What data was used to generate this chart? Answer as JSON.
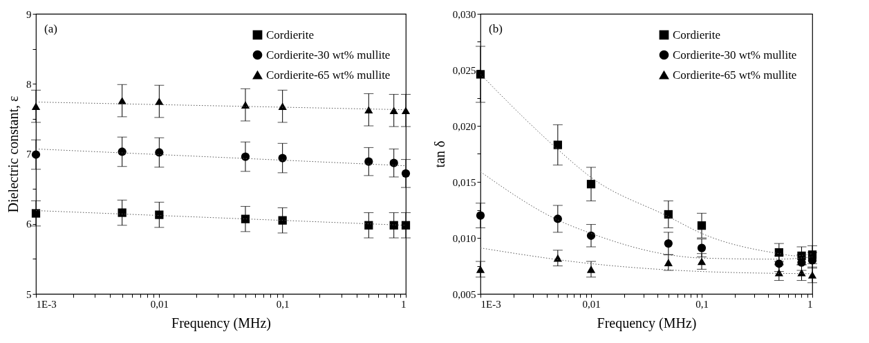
{
  "chart_data": [
    {
      "type": "scatter",
      "xlabel": "Frequency (MHz)",
      "ylabel": "Dielectric constant,  ε",
      "annotations": [
        "(a)"
      ],
      "log": "x",
      "grid": false,
      "legend": "top right",
      "x": [
        0.001,
        0.005,
        0.01,
        0.05,
        0.1,
        0.5,
        0.8,
        1
      ],
      "xlim": [
        0.001,
        1
      ],
      "xticks": [
        {
          "value": 0.001,
          "label": "1E-3"
        },
        {
          "value": 0.002,
          "label": null
        },
        {
          "value": 0.003,
          "label": null
        },
        {
          "value": 0.004,
          "label": null
        },
        {
          "value": 0.005,
          "label": null
        },
        {
          "value": 0.006,
          "label": null
        },
        {
          "value": 0.007,
          "label": null
        },
        {
          "value": 0.008,
          "label": null
        },
        {
          "value": 0.009,
          "label": null
        },
        {
          "value": 0.01,
          "label": "0,01"
        },
        {
          "value": 0.02,
          "label": null
        },
        {
          "value": 0.03,
          "label": null
        },
        {
          "value": 0.04,
          "label": null
        },
        {
          "value": 0.05,
          "label": null
        },
        {
          "value": 0.06,
          "label": null
        },
        {
          "value": 0.07,
          "label": null
        },
        {
          "value": 0.08,
          "label": null
        },
        {
          "value": 0.09,
          "label": null
        },
        {
          "value": 0.1,
          "label": "0,1"
        },
        {
          "value": 0.2,
          "label": null
        },
        {
          "value": 0.3,
          "label": null
        },
        {
          "value": 0.4,
          "label": null
        },
        {
          "value": 0.5,
          "label": null
        },
        {
          "value": 0.6,
          "label": null
        },
        {
          "value": 0.7,
          "label": null
        },
        {
          "value": 0.8,
          "label": null
        },
        {
          "value": 0.9,
          "label": null
        },
        {
          "value": 1,
          "label": "1"
        }
      ],
      "ylim": [
        5,
        9
      ],
      "yticks": [
        5,
        {
          "value": 5.5,
          "label": null
        },
        6,
        {
          "value": 6.5,
          "label": null
        },
        7,
        {
          "value": 7.5,
          "label": null
        },
        8,
        {
          "value": 8.5,
          "label": null
        },
        9
      ],
      "series": [
        {
          "name": "Cordierite",
          "type": "scatter",
          "marker": "square",
          "color": "#000000",
          "values": [
            6.15,
            6.16,
            6.13,
            6.07,
            6.05,
            5.98,
            5.98,
            5.98
          ],
          "errors": [
            0.18,
            0.18,
            0.18,
            0.18,
            0.18,
            0.18,
            0.18,
            0.18
          ]
        },
        {
          "name": "Cordierite-30 wt% mullite",
          "type": "scatter",
          "marker": "circle",
          "color": "#000000",
          "values": [
            6.99,
            7.03,
            7.02,
            6.96,
            6.94,
            6.89,
            6.87,
            6.72
          ],
          "errors": [
            0.21,
            0.21,
            0.21,
            0.21,
            0.21,
            0.2,
            0.2,
            0.2
          ]
        },
        {
          "name": "Cordierite-65 wt% mullite",
          "type": "scatter",
          "marker": "triangle",
          "color": "#000000",
          "values": [
            7.68,
            7.76,
            7.75,
            7.7,
            7.68,
            7.63,
            7.62,
            7.62
          ],
          "errors": [
            0.23,
            0.23,
            0.23,
            0.23,
            0.23,
            0.23,
            0.23,
            0.23
          ]
        },
        {
          "type": "line",
          "marker": "none",
          "line_style": "dotted",
          "color": "#555555",
          "x": [
            0.001,
            1
          ],
          "values": [
            6.19,
            5.98
          ]
        },
        {
          "type": "line",
          "marker": "none",
          "line_style": "dotted",
          "color": "#555555",
          "x": [
            0.001,
            1
          ],
          "values": [
            7.07,
            6.83
          ]
        },
        {
          "type": "line",
          "marker": "none",
          "line_style": "dotted",
          "color": "#555555",
          "x": [
            0.001,
            1
          ],
          "values": [
            7.74,
            7.63
          ]
        }
      ]
    },
    {
      "type": "scatter",
      "xlabel": "Frequency (MHz)",
      "ylabel": "tan δ",
      "annotations": [
        "(b)"
      ],
      "log": "x",
      "grid": false,
      "legend": "top right",
      "x": [
        0.001,
        0.005,
        0.01,
        0.05,
        0.1,
        0.5,
        0.8,
        1
      ],
      "xlim": [
        0.001,
        1
      ],
      "xticks": [
        {
          "value": 0.001,
          "label": "1E-3"
        },
        {
          "value": 0.002,
          "label": null
        },
        {
          "value": 0.003,
          "label": null
        },
        {
          "value": 0.004,
          "label": null
        },
        {
          "value": 0.005,
          "label": null
        },
        {
          "value": 0.006,
          "label": null
        },
        {
          "value": 0.007,
          "label": null
        },
        {
          "value": 0.008,
          "label": null
        },
        {
          "value": 0.009,
          "label": null
        },
        {
          "value": 0.01,
          "label": "0,01"
        },
        {
          "value": 0.02,
          "label": null
        },
        {
          "value": 0.03,
          "label": null
        },
        {
          "value": 0.04,
          "label": null
        },
        {
          "value": 0.05,
          "label": null
        },
        {
          "value": 0.06,
          "label": null
        },
        {
          "value": 0.07,
          "label": null
        },
        {
          "value": 0.08,
          "label": null
        },
        {
          "value": 0.09,
          "label": null
        },
        {
          "value": 0.1,
          "label": "0,1"
        },
        {
          "value": 0.2,
          "label": null
        },
        {
          "value": 0.3,
          "label": null
        },
        {
          "value": 0.4,
          "label": null
        },
        {
          "value": 0.5,
          "label": null
        },
        {
          "value": 0.6,
          "label": null
        },
        {
          "value": 0.7,
          "label": null
        },
        {
          "value": 0.8,
          "label": null
        },
        {
          "value": 0.9,
          "label": null
        },
        {
          "value": 1,
          "label": "1"
        }
      ],
      "ylim": [
        0.005,
        0.03
      ],
      "yticks": [
        {
          "value": 0.005,
          "label": "0,005"
        },
        {
          "value": 0.0075,
          "label": null
        },
        {
          "value": 0.01,
          "label": "0,010"
        },
        {
          "value": 0.0125,
          "label": null
        },
        {
          "value": 0.015,
          "label": "0,015"
        },
        {
          "value": 0.0175,
          "label": null
        },
        {
          "value": 0.02,
          "label": "0,020"
        },
        {
          "value": 0.0225,
          "label": null
        },
        {
          "value": 0.025,
          "label": "0,025"
        },
        {
          "value": 0.0275,
          "label": null
        },
        {
          "value": 0.03,
          "label": "0,030"
        }
      ],
      "series": [
        {
          "name": "Cordierite",
          "type": "scatter",
          "marker": "square",
          "color": "#000000",
          "values": [
            0.0246,
            0.0183,
            0.0148,
            0.0121,
            0.0111,
            0.0087,
            0.0084,
            0.0085
          ],
          "errors": [
            0.0025,
            0.0018,
            0.0015,
            0.0012,
            0.0011,
            0.0008,
            0.0008,
            0.0008
          ]
        },
        {
          "name": "Cordierite-30 wt% mullite",
          "type": "scatter",
          "marker": "circle",
          "color": "#000000",
          "values": [
            0.012,
            0.0117,
            0.0102,
            0.0095,
            0.0091,
            0.0077,
            0.0078,
            0.008
          ],
          "errors": [
            0.0011,
            0.0012,
            0.001,
            0.001,
            0.0008,
            0.0007,
            0.0007,
            0.0007
          ]
        },
        {
          "name": "Cordierite-65 wt% mullite",
          "type": "scatter",
          "marker": "triangle",
          "color": "#000000",
          "values": [
            0.0072,
            0.0082,
            0.0072,
            0.0078,
            0.0079,
            0.0069,
            0.0069,
            0.0067
          ],
          "errors": [
            0.0007,
            0.0007,
            0.0007,
            0.0007,
            0.0007,
            0.0007,
            0.0007,
            0.0007
          ]
        },
        {
          "type": "line",
          "marker": "none",
          "line_style": "dotted",
          "color": "#555555",
          "x": [
            0.001,
            0.005,
            0.01,
            0.05,
            0.1,
            0.5,
            0.7,
            1
          ],
          "values": [
            0.0246,
            0.0179,
            0.0154,
            0.0119,
            0.0104,
            0.0086,
            0.0084,
            0.0086
          ]
        },
        {
          "type": "line",
          "marker": "none",
          "line_style": "dotted",
          "color": "#555555",
          "x": [
            0.001,
            0.005,
            0.01,
            0.05,
            0.1,
            0.5,
            1
          ],
          "values": [
            0.0159,
            0.0116,
            0.0104,
            0.0085,
            0.0082,
            0.0081,
            0.0083
          ]
        },
        {
          "type": "line",
          "marker": "none",
          "line_style": "dotted",
          "color": "#555555",
          "x": [
            0.001,
            0.01,
            0.1,
            1
          ],
          "values": [
            0.0091,
            0.0077,
            0.007,
            0.0068
          ]
        }
      ]
    }
  ]
}
